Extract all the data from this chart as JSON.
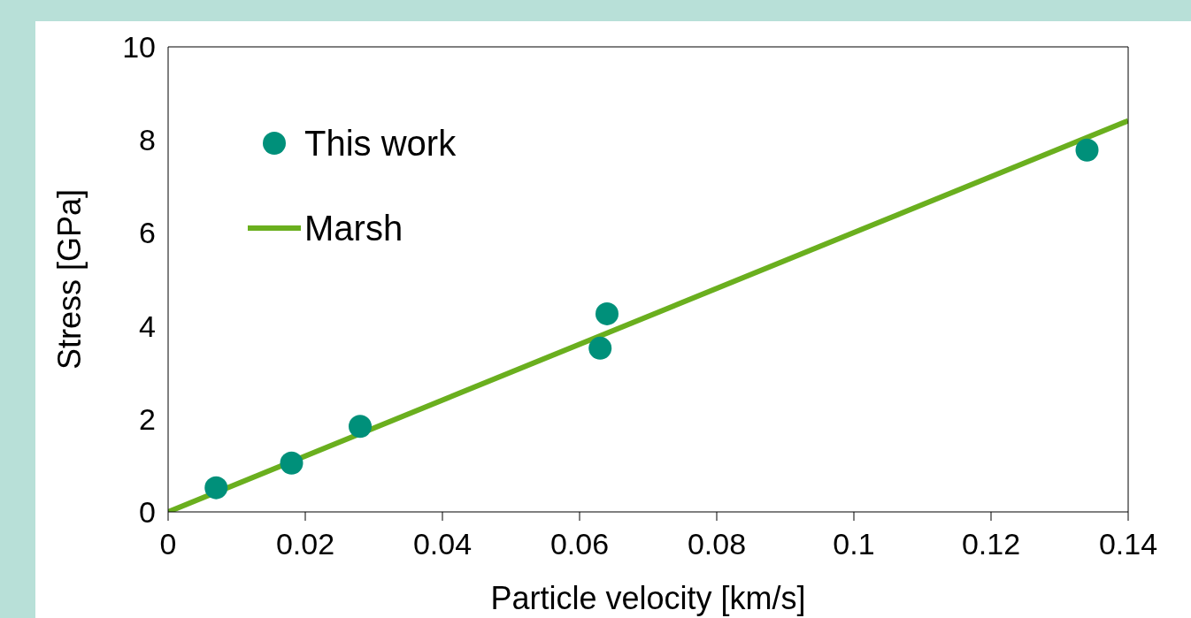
{
  "chart_data": {
    "type": "scatter",
    "xlabel": "Particle velocity [km/s]",
    "ylabel": "Stress [GPa]",
    "series": [
      {
        "name": "This work",
        "marker": "circle",
        "color": "#00907a",
        "x": [
          0.007,
          0.018,
          0.028,
          0.063,
          0.064,
          0.134
        ],
        "values": [
          0.52,
          1.05,
          1.84,
          3.52,
          4.26,
          7.78
        ]
      },
      {
        "name": "Marsh",
        "type": "line",
        "color": "#6aaf1e",
        "x": [
          0,
          0.14
        ],
        "values": [
          0,
          8.41
        ]
      }
    ],
    "xlim": [
      0,
      0.14
    ],
    "xticks": [
      0,
      0.02,
      0.04,
      0.06,
      0.08,
      0.1,
      0.12,
      0.14
    ],
    "ylim": [
      0,
      10
    ],
    "yticks": [
      0,
      2,
      4,
      6,
      8,
      10
    ],
    "legend": "top left"
  }
}
